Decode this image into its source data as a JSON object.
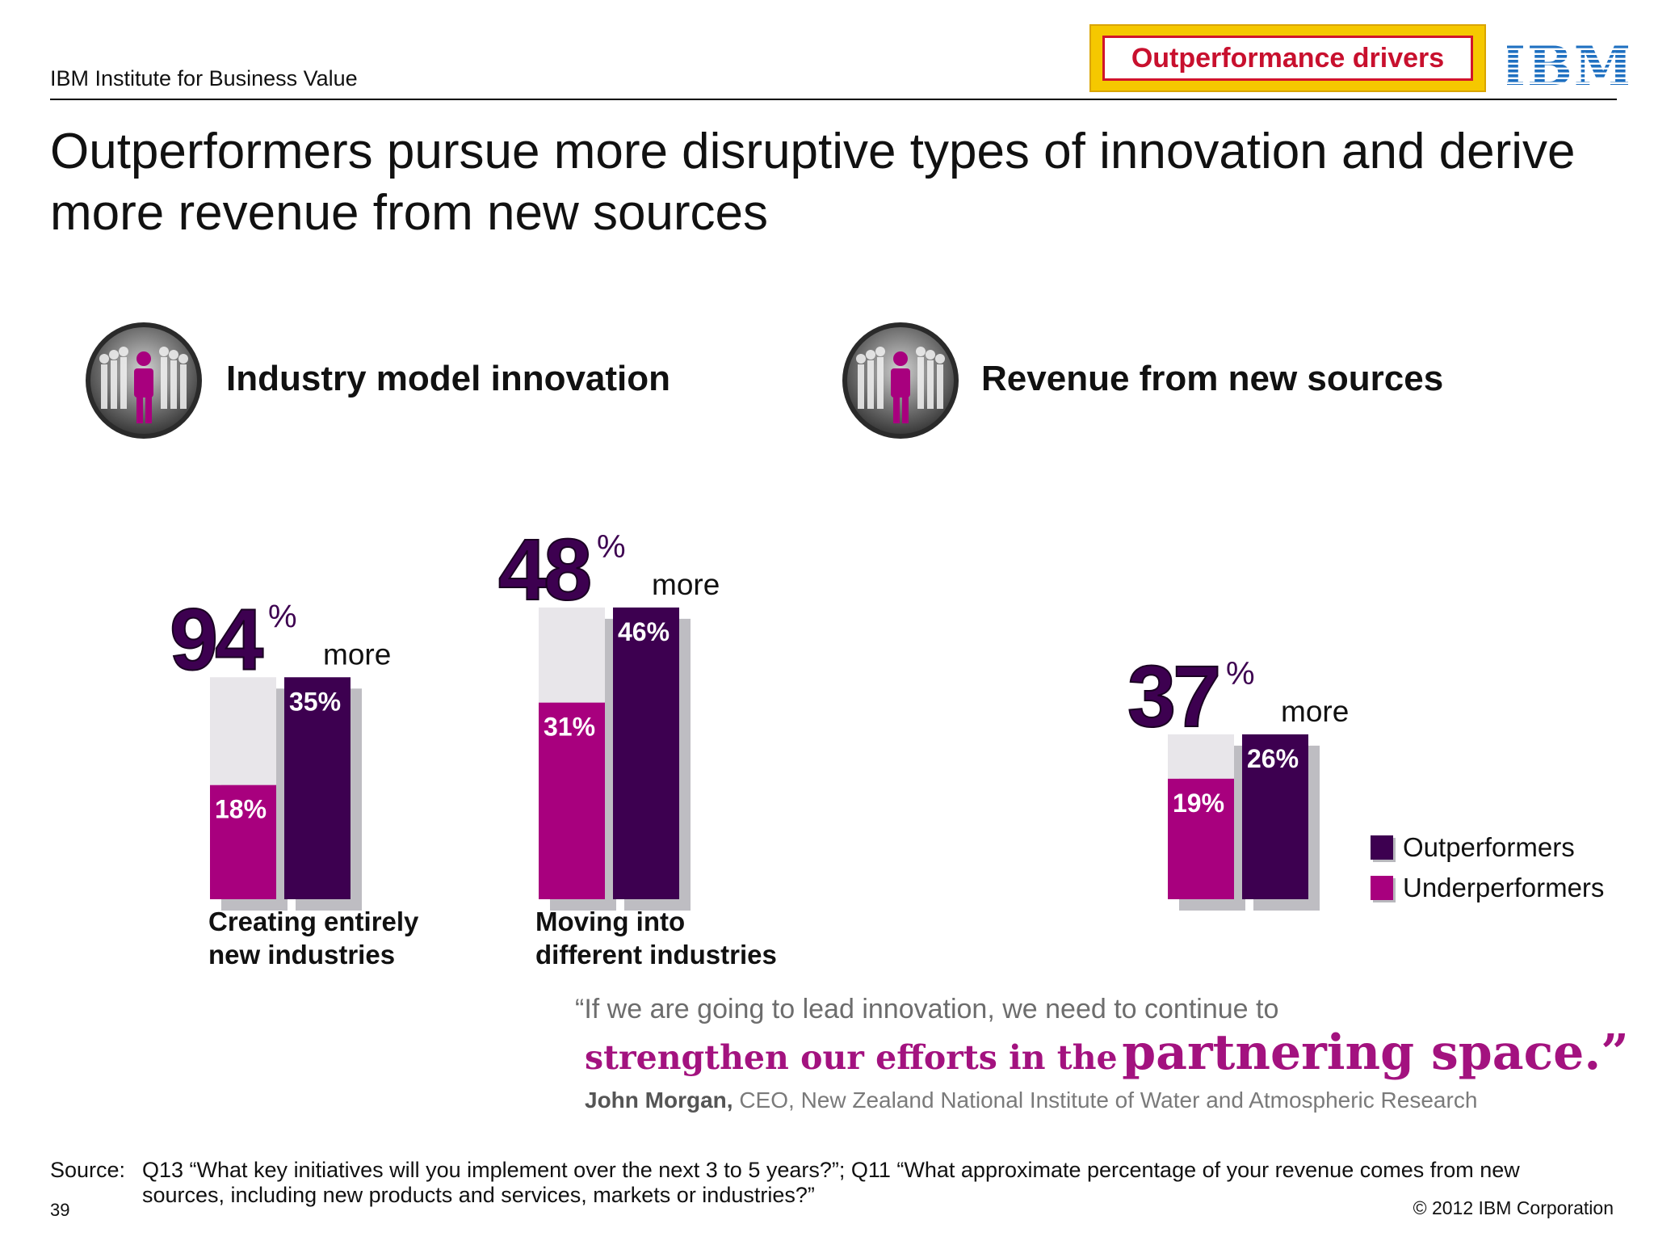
{
  "header": {
    "institute": "IBM Institute for Business Value",
    "badge": "Outperformance drivers",
    "logo_text": "IBM"
  },
  "title": "Outperformers pursue more disruptive types of innovation and derive more revenue from new sources",
  "sections": {
    "left_title": "Industry model innovation",
    "right_title": "Revenue from new sources"
  },
  "colors": {
    "outperformers": "#3d0050",
    "underperformers": "#a8007e",
    "bar_track": "#e8e6ea",
    "bar_shadow": "#bebdc2",
    "badge_bg": "#f5c800",
    "badge_text": "#c8102e",
    "ibm_blue": "#1f70c1"
  },
  "chart_data": {
    "type": "bar",
    "unit": "%",
    "series_names": [
      "Outperformers",
      "Underperformers"
    ],
    "legend_position": "bottom-right",
    "groups": [
      {
        "category": "Creating entirely new industries",
        "label_lines": [
          "Creating entirely",
          "new industries"
        ],
        "underperformers": 18,
        "outperformers": 35,
        "difference_pct": 94,
        "difference_word": "more"
      },
      {
        "category": "Moving into different industries",
        "label_lines": [
          "Moving into",
          "different industries"
        ],
        "underperformers": 31,
        "outperformers": 46,
        "difference_pct": 48,
        "difference_word": "more"
      },
      {
        "category": "",
        "label_lines": [],
        "underperformers": 19,
        "outperformers": 26,
        "difference_pct": 37,
        "difference_word": "more"
      }
    ]
  },
  "quote": {
    "line1": "“If we are going to lead innovation, we need to continue to",
    "line2_small": "strengthen our efforts in the",
    "line2_big": "partnering space.”",
    "author_name": "John Morgan,",
    "author_title": "CEO, New Zealand National Institute of Water and Atmospheric Research"
  },
  "footer": {
    "source_label": "Source:",
    "source_text": "Q13 “What key initiatives will you implement over the next 3 to 5 years?”; Q11 “What approximate percentage of your revenue comes from new sources, including new products and services, markets or industries?”",
    "page_number": "39",
    "copyright": "© 2012 IBM Corporation"
  }
}
